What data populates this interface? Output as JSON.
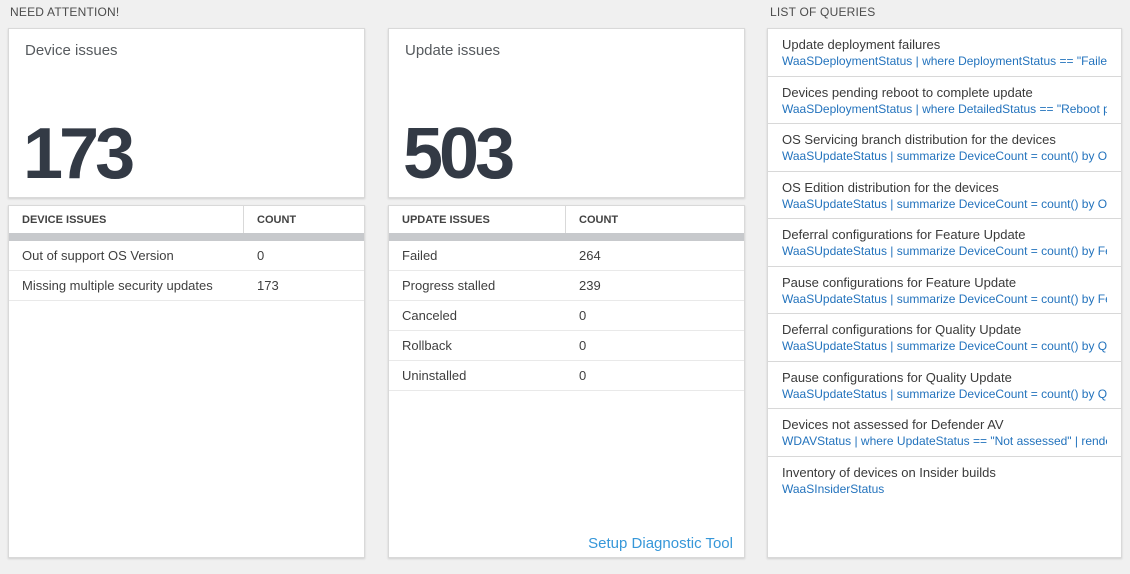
{
  "sections": {
    "need_attention": "NEED ATTENTION!",
    "list_of_queries": "LIST OF QUERIES"
  },
  "device_card": {
    "title": "Device issues",
    "count": "173"
  },
  "update_card": {
    "title": "Update issues",
    "count": "503"
  },
  "device_table": {
    "headers": [
      "DEVICE ISSUES",
      "COUNT"
    ],
    "rows": [
      {
        "label": "Out of support OS Version",
        "count": "0"
      },
      {
        "label": "Missing multiple security updates",
        "count": "173"
      }
    ]
  },
  "update_table": {
    "headers": [
      "UPDATE ISSUES",
      "COUNT"
    ],
    "rows": [
      {
        "label": "Failed",
        "count": "264"
      },
      {
        "label": "Progress stalled",
        "count": "239"
      },
      {
        "label": "Canceled",
        "count": "0"
      },
      {
        "label": "Rollback",
        "count": "0"
      },
      {
        "label": "Uninstalled",
        "count": "0"
      }
    ],
    "footer_link": "Setup Diagnostic Tool"
  },
  "queries": [
    {
      "title": "Update deployment failures",
      "query": "WaaSDeploymentStatus | where DeploymentStatus == \"Failed\" |..."
    },
    {
      "title": "Devices pending reboot to complete update",
      "query": "WaaSDeploymentStatus | where DetailedStatus == \"Reboot pend..."
    },
    {
      "title": "OS Servicing branch distribution for the devices",
      "query": "WaaSUpdateStatus | summarize DeviceCount = count() by OSSer..."
    },
    {
      "title": "OS Edition distribution for the devices",
      "query": "WaaSUpdateStatus | summarize DeviceCount = count() by OSEdit..."
    },
    {
      "title": "Deferral configurations for Feature Update",
      "query": "WaaSUpdateStatus | summarize DeviceCount = count() by Featur..."
    },
    {
      "title": "Pause configurations for Feature Update",
      "query": "WaaSUpdateStatus | summarize DeviceCount = count() by Featur..."
    },
    {
      "title": "Deferral configurations for Quality Update",
      "query": "WaaSUpdateStatus | summarize DeviceCount = count() by Qualit..."
    },
    {
      "title": "Pause configurations for Quality Update",
      "query": "WaaSUpdateStatus | summarize DeviceCount = count() by Qualit..."
    },
    {
      "title": "Devices not assessed for Defender AV",
      "query": "WDAVStatus | where UpdateStatus == \"Not assessed\" | render ta..."
    },
    {
      "title": "Inventory of devices on Insider builds",
      "query": "WaaSInsiderStatus"
    }
  ],
  "colors": {
    "page_background": "#f0f0f0",
    "panel_background": "#ffffff",
    "big_number": "#333a45",
    "query_link_blue": "#2373bd",
    "footer_link_blue": "#3697d9",
    "scrollbar_gray": "#c7c9cc"
  }
}
